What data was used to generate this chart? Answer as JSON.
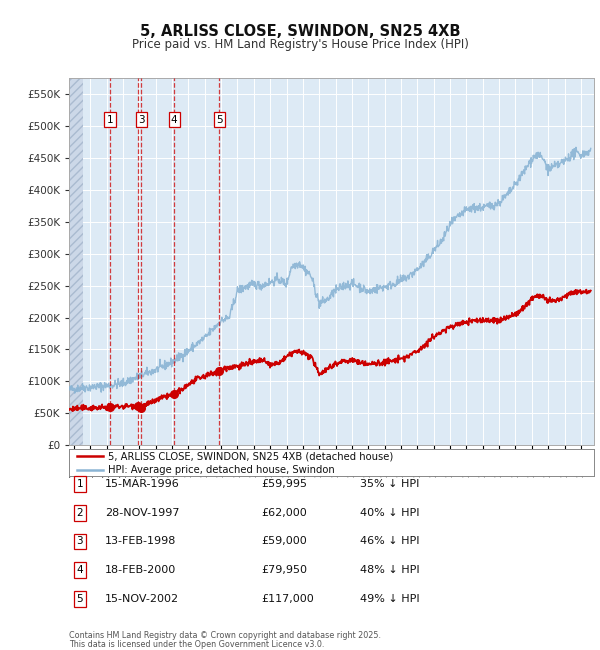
{
  "title": "5, ARLISS CLOSE, SWINDON, SN25 4XB",
  "subtitle": "Price paid vs. HM Land Registry's House Price Index (HPI)",
  "legend_line1": "5, ARLISS CLOSE, SWINDON, SN25 4XB (detached house)",
  "legend_line2": "HPI: Average price, detached house, Swindon",
  "footer1": "Contains HM Land Registry data © Crown copyright and database right 2025.",
  "footer2": "This data is licensed under the Open Government Licence v3.0.",
  "transactions": [
    {
      "num": 1,
      "date": "15-MAR-1996",
      "price": 59995,
      "pct": "35% ↓ HPI",
      "year": 1996.21
    },
    {
      "num": 2,
      "date": "28-NOV-1997",
      "price": 62000,
      "pct": "40% ↓ HPI",
      "year": 1997.91
    },
    {
      "num": 3,
      "date": "13-FEB-1998",
      "price": 59000,
      "pct": "46% ↓ HPI",
      "year": 1998.12
    },
    {
      "num": 4,
      "date": "18-FEB-2000",
      "price": 79950,
      "pct": "48% ↓ HPI",
      "year": 2000.13
    },
    {
      "num": 5,
      "date": "15-NOV-2002",
      "price": 117000,
      "pct": "49% ↓ HPI",
      "year": 2002.88
    }
  ],
  "price_labels": [
    "£59,995",
    "£62,000",
    "£59,000",
    "£79,950",
    "£117,000"
  ],
  "hpi_color": "#8ab4d4",
  "price_color": "#cc0000",
  "vline_color": "#cc0000",
  "outer_bg": "#f0f0f0",
  "plot_bg_color": "#ddeaf5",
  "grid_color": "#ffffff",
  "ylim": [
    0,
    575000
  ],
  "yticks": [
    0,
    50000,
    100000,
    150000,
    200000,
    250000,
    300000,
    350000,
    400000,
    450000,
    500000,
    550000
  ],
  "xlim_start": 1993.7,
  "xlim_end": 2025.8,
  "hpi_anchors": [
    [
      1993.7,
      87000
    ],
    [
      1994.5,
      90000
    ],
    [
      1995.0,
      91000
    ],
    [
      1996.0,
      93000
    ],
    [
      1997.0,
      97000
    ],
    [
      1998.0,
      108000
    ],
    [
      1999.0,
      118000
    ],
    [
      2000.0,
      130000
    ],
    [
      2001.0,
      148000
    ],
    [
      2002.0,
      168000
    ],
    [
      2003.0,
      195000
    ],
    [
      2003.5,
      200000
    ],
    [
      2004.0,
      242000
    ],
    [
      2004.5,
      248000
    ],
    [
      2005.0,
      252000
    ],
    [
      2005.5,
      250000
    ],
    [
      2006.0,
      255000
    ],
    [
      2006.5,
      260000
    ],
    [
      2007.0,
      252000
    ],
    [
      2007.3,
      280000
    ],
    [
      2007.8,
      285000
    ],
    [
      2008.5,
      265000
    ],
    [
      2009.0,
      222000
    ],
    [
      2009.5,
      228000
    ],
    [
      2010.0,
      242000
    ],
    [
      2010.5,
      250000
    ],
    [
      2011.0,
      253000
    ],
    [
      2011.5,
      248000
    ],
    [
      2012.0,
      240000
    ],
    [
      2012.5,
      245000
    ],
    [
      2013.0,
      248000
    ],
    [
      2013.5,
      252000
    ],
    [
      2014.0,
      258000
    ],
    [
      2014.5,
      265000
    ],
    [
      2015.0,
      275000
    ],
    [
      2015.5,
      288000
    ],
    [
      2016.0,
      305000
    ],
    [
      2016.5,
      320000
    ],
    [
      2017.0,
      345000
    ],
    [
      2017.5,
      358000
    ],
    [
      2018.0,
      368000
    ],
    [
      2018.5,
      372000
    ],
    [
      2019.0,
      372000
    ],
    [
      2019.5,
      375000
    ],
    [
      2020.0,
      380000
    ],
    [
      2020.5,
      392000
    ],
    [
      2021.0,
      408000
    ],
    [
      2021.5,
      428000
    ],
    [
      2022.0,
      448000
    ],
    [
      2022.3,
      455000
    ],
    [
      2022.7,
      448000
    ],
    [
      2023.0,
      432000
    ],
    [
      2023.3,
      435000
    ],
    [
      2023.7,
      440000
    ],
    [
      2024.0,
      445000
    ],
    [
      2024.3,
      452000
    ],
    [
      2024.7,
      458000
    ],
    [
      2025.0,
      455000
    ],
    [
      2025.5,
      460000
    ]
  ],
  "price_anchors": [
    [
      1993.7,
      56000
    ],
    [
      1994.0,
      57000
    ],
    [
      1995.0,
      58500
    ],
    [
      1996.0,
      59000
    ],
    [
      1996.21,
      59995
    ],
    [
      1997.0,
      61000
    ],
    [
      1997.91,
      62000
    ],
    [
      1998.12,
      59000
    ],
    [
      1998.5,
      64000
    ],
    [
      1999.0,
      70000
    ],
    [
      1999.5,
      75000
    ],
    [
      2000.13,
      79950
    ],
    [
      2000.5,
      85000
    ],
    [
      2001.0,
      95000
    ],
    [
      2001.5,
      103000
    ],
    [
      2002.0,
      108000
    ],
    [
      2002.88,
      117000
    ],
    [
      2003.0,
      119000
    ],
    [
      2003.5,
      122000
    ],
    [
      2004.0,
      124000
    ],
    [
      2004.5,
      127000
    ],
    [
      2005.0,
      130000
    ],
    [
      2005.5,
      133000
    ],
    [
      2006.0,
      126000
    ],
    [
      2006.5,
      128000
    ],
    [
      2007.0,
      138000
    ],
    [
      2007.5,
      147000
    ],
    [
      2008.0,
      145000
    ],
    [
      2008.5,
      138000
    ],
    [
      2009.0,
      112000
    ],
    [
      2009.5,
      120000
    ],
    [
      2010.0,
      128000
    ],
    [
      2010.5,
      132000
    ],
    [
      2011.0,
      133000
    ],
    [
      2011.5,
      130000
    ],
    [
      2012.0,
      127000
    ],
    [
      2012.5,
      128000
    ],
    [
      2013.0,
      130000
    ],
    [
      2013.5,
      132000
    ],
    [
      2014.0,
      135000
    ],
    [
      2014.5,
      140000
    ],
    [
      2015.0,
      148000
    ],
    [
      2015.5,
      158000
    ],
    [
      2016.0,
      170000
    ],
    [
      2016.5,
      178000
    ],
    [
      2017.0,
      185000
    ],
    [
      2017.5,
      190000
    ],
    [
      2018.0,
      193000
    ],
    [
      2018.5,
      195000
    ],
    [
      2019.0,
      196000
    ],
    [
      2019.5,
      195000
    ],
    [
      2020.0,
      195000
    ],
    [
      2020.5,
      200000
    ],
    [
      2021.0,
      205000
    ],
    [
      2021.5,
      215000
    ],
    [
      2022.0,
      230000
    ],
    [
      2022.3,
      235000
    ],
    [
      2022.7,
      232000
    ],
    [
      2023.0,
      225000
    ],
    [
      2023.3,
      225000
    ],
    [
      2023.7,
      228000
    ],
    [
      2024.0,
      233000
    ],
    [
      2024.5,
      240000
    ],
    [
      2025.0,
      240000
    ],
    [
      2025.5,
      242000
    ]
  ]
}
